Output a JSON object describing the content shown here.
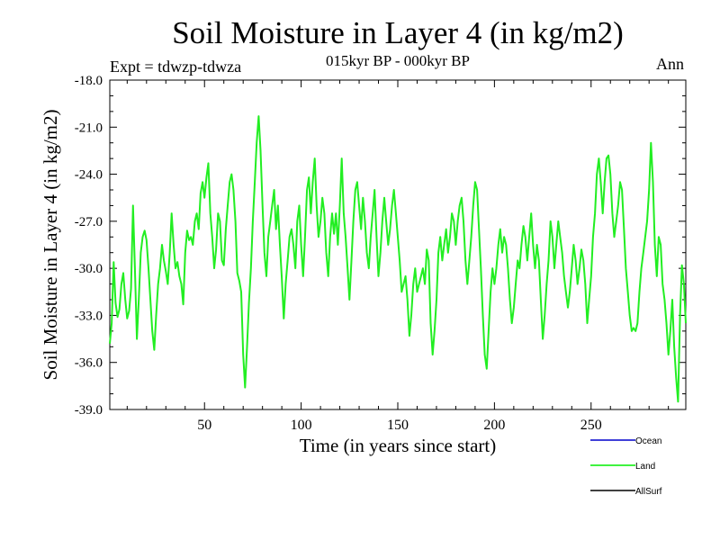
{
  "chart_data": {
    "type": "line",
    "title": "Soil Moisture in Layer 4 (in kg/m2)",
    "subtitle": "015kyr BP - 000kyr BP",
    "experiment": "Expt = tdwzp-tdwza",
    "season": "Ann",
    "xlabel": "Time (in years since start)",
    "ylabel": "Soil Moisture in Layer 4 (in kg/m2)",
    "xlim": [
      1,
      299
    ],
    "ylim": [
      -39.0,
      -18.0
    ],
    "x_ticks": [
      50,
      100,
      150,
      200,
      250
    ],
    "y_ticks": [
      -18.0,
      -21.0,
      -24.0,
      -27.0,
      -30.0,
      -33.0,
      -36.0,
      -39.0
    ],
    "x_tick_labels": [
      "50",
      "100",
      "150",
      "200",
      "250"
    ],
    "y_tick_labels": [
      "-18.0",
      "-21.0",
      "-24.0",
      "-27.0",
      "-30.0",
      "-33.0",
      "-36.0",
      "-39.0"
    ],
    "legend": [
      {
        "name": "Ocean",
        "color": "#0000cc"
      },
      {
        "name": "Land",
        "color": "#00ee00"
      },
      {
        "name": "AllSurf",
        "color": "#000000"
      }
    ],
    "series": [
      {
        "name": "Land",
        "color": "#22ee22",
        "x_start": 1,
        "x_step": 1,
        "values": [
          -34.8,
          -33.5,
          -29.6,
          -32.2,
          -33.1,
          -32.6,
          -31.0,
          -30.3,
          -32.0,
          -33.2,
          -32.7,
          -31.3,
          -26.0,
          -30.0,
          -34.5,
          -32.0,
          -29.0,
          -28.0,
          -27.6,
          -28.2,
          -30.0,
          -32.0,
          -34.0,
          -35.2,
          -33.0,
          -31.0,
          -30.0,
          -28.5,
          -29.5,
          -30.2,
          -31.0,
          -29.0,
          -26.5,
          -28.5,
          -30.0,
          -29.6,
          -30.5,
          -31.0,
          -32.3,
          -29.0,
          -27.6,
          -28.2,
          -28.0,
          -28.5,
          -27.0,
          -26.5,
          -27.5,
          -25.2,
          -24.5,
          -25.5,
          -24.2,
          -23.3,
          -26.5,
          -28.0,
          -30.0,
          -28.8,
          -26.5,
          -27.0,
          -29.5,
          -29.8,
          -27.5,
          -26.0,
          -24.5,
          -24.0,
          -25.0,
          -27.0,
          -30.3,
          -30.8,
          -31.5,
          -35.5,
          -37.6,
          -35.0,
          -32.2,
          -30.0,
          -27.0,
          -24.5,
          -22.0,
          -20.3,
          -22.5,
          -26.0,
          -29.0,
          -30.5,
          -28.0,
          -27.0,
          -26.0,
          -25.0,
          -27.5,
          -26.0,
          -28.5,
          -30.6,
          -33.2,
          -31.0,
          -29.5,
          -28.0,
          -27.5,
          -28.5,
          -30.0,
          -27.0,
          -26.0,
          -28.5,
          -30.5,
          -28.0,
          -25.0,
          -24.2,
          -26.5,
          -24.5,
          -23.0,
          -26.0,
          -28.0,
          -27.0,
          -25.5,
          -26.5,
          -29.0,
          -30.5,
          -28.0,
          -26.5,
          -27.8,
          -26.5,
          -28.5,
          -26.0,
          -23.0,
          -26.5,
          -28.0,
          -30.0,
          -32.0,
          -29.5,
          -27.0,
          -25.0,
          -24.5,
          -26.0,
          -27.5,
          -25.5,
          -27.0,
          -29.0,
          -30.0,
          -28.0,
          -26.5,
          -25.0,
          -28.0,
          -30.5,
          -29.0,
          -27.0,
          -25.5,
          -27.0,
          -28.5,
          -27.5,
          -26.0,
          -25.0,
          -26.5,
          -28.0,
          -29.5,
          -31.5,
          -31.0,
          -30.5,
          -32.0,
          -34.3,
          -33.0,
          -31.0,
          -30.0,
          -31.5,
          -31.0,
          -30.5,
          -30.0,
          -31.0,
          -28.8,
          -29.5,
          -33.5,
          -35.5,
          -34.0,
          -32.0,
          -29.0,
          -28.0,
          -29.5,
          -28.5,
          -27.5,
          -29.0,
          -28.0,
          -26.5,
          -27.0,
          -28.5,
          -27.0,
          -26.0,
          -25.5,
          -27.0,
          -29.5,
          -31.0,
          -29.5,
          -28.0,
          -26.0,
          -24.5,
          -25.0,
          -27.5,
          -30.0,
          -33.0,
          -35.5,
          -36.4,
          -34.0,
          -31.5,
          -30.0,
          -31.0,
          -30.0,
          -28.5,
          -27.5,
          -29.0,
          -28.0,
          -28.5,
          -30.0,
          -32.0,
          -33.5,
          -32.5,
          -31.0,
          -29.5,
          -30.0,
          -28.5,
          -27.3,
          -28.0,
          -29.5,
          -28.0,
          -26.5,
          -28.5,
          -30.0,
          -28.5,
          -29.5,
          -32.0,
          -34.5,
          -33.0,
          -31.0,
          -29.5,
          -27.0,
          -28.0,
          -30.0,
          -28.5,
          -27.0,
          -28.0,
          -29.0,
          -30.5,
          -31.5,
          -32.5,
          -31.5,
          -30.0,
          -28.5,
          -29.5,
          -31.0,
          -30.0,
          -28.8,
          -29.5,
          -31.0,
          -33.5,
          -32.0,
          -30.5,
          -28.0,
          -26.5,
          -24.0,
          -23.0,
          -24.5,
          -26.5,
          -24.5,
          -23.0,
          -22.8,
          -24.0,
          -26.5,
          -28.0,
          -27.0,
          -26.0,
          -24.5,
          -25.0,
          -27.5,
          -30.0,
          -31.5,
          -33.0,
          -34.0,
          -33.8,
          -34.0,
          -33.5,
          -31.5,
          -30.0,
          -29.0,
          -28.0,
          -27.0,
          -25.0,
          -22.0,
          -24.5,
          -28.5,
          -30.5,
          -28.0,
          -28.5,
          -31.0,
          -32.0,
          -33.5,
          -35.5,
          -34.0,
          -32.0,
          -35.0,
          -37.0,
          -38.5,
          -33.0,
          -29.8,
          -31.0,
          -33.5
        ]
      }
    ]
  }
}
